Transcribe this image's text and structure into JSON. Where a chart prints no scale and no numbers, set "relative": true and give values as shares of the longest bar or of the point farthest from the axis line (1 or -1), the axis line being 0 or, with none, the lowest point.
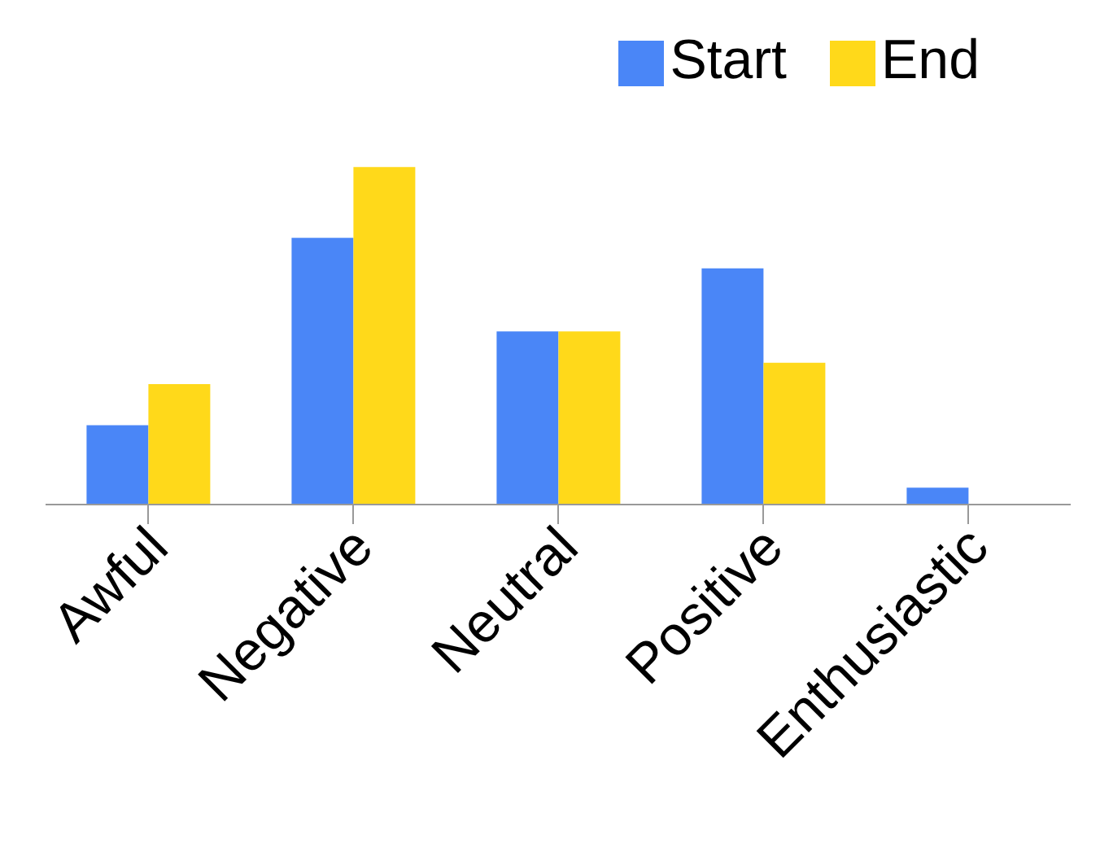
{
  "chart_data": {
    "type": "bar",
    "relative": true,
    "categories": [
      "Awful",
      "Negative",
      "Neutral",
      "Positive",
      "Enthusiastic"
    ],
    "series": [
      {
        "name": "Start",
        "color": "#4a86f7",
        "values": [
          0.235,
          0.79,
          0.513,
          0.7,
          0.05
        ]
      },
      {
        "name": "End",
        "color": "#ffd91a",
        "values": [
          0.357,
          1,
          0.513,
          0.42,
          0
        ]
      }
    ],
    "legend": "top right"
  }
}
